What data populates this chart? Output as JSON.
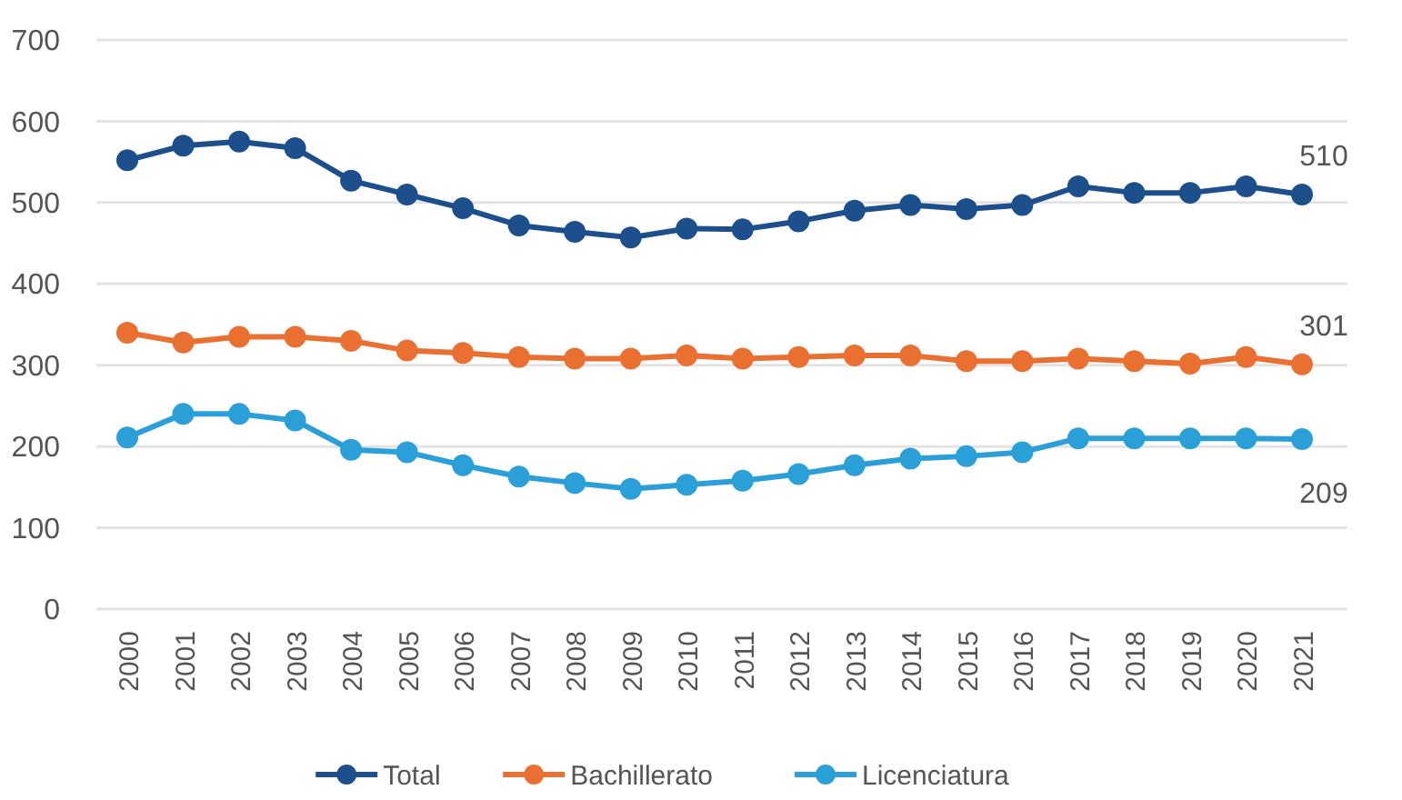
{
  "chart_data": {
    "type": "line",
    "categories": [
      "2000",
      "2001",
      "2002",
      "2003",
      "2004",
      "2005",
      "2006",
      "2007",
      "2008",
      "2009",
      "2010",
      "2011",
      "2012",
      "2013",
      "2014",
      "2015",
      "2016",
      "2017",
      "2018",
      "2019",
      "2020",
      "2021"
    ],
    "series": [
      {
        "name": "Total",
        "color": "#1c4f8c",
        "values": [
          552,
          570,
          575,
          567,
          527,
          510,
          493,
          472,
          464,
          457,
          468,
          467,
          477,
          490,
          497,
          492,
          497,
          520,
          512,
          512,
          520,
          510
        ]
      },
      {
        "name": "Bachillerato",
        "color": "#ea7031",
        "values": [
          340,
          328,
          335,
          335,
          330,
          318,
          315,
          310,
          308,
          308,
          312,
          308,
          310,
          312,
          312,
          305,
          305,
          308,
          305,
          302,
          310,
          301
        ]
      },
      {
        "name": "Licenciatura",
        "color": "#2a9fd8",
        "values": [
          211,
          240,
          240,
          232,
          196,
          193,
          177,
          163,
          155,
          148,
          153,
          158,
          166,
          177,
          185,
          188,
          193,
          210,
          210,
          210,
          210,
          209
        ]
      }
    ],
    "annotations": [
      {
        "text": "510",
        "x": "2021",
        "y": 510
      },
      {
        "text": "301",
        "x": "2021",
        "y": 301
      },
      {
        "text": "209",
        "x": "2021",
        "y": 209
      }
    ],
    "ylim": [
      0,
      700
    ],
    "yticks": [
      0,
      100,
      200,
      300,
      400,
      500,
      600,
      700
    ],
    "grid": "y",
    "legend": "bottom",
    "marker": "circle",
    "line_style": "solid"
  }
}
